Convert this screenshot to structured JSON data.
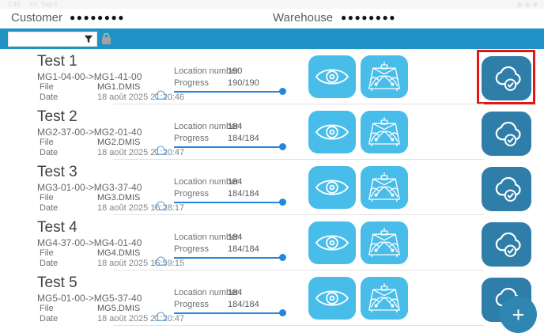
{
  "status_bar": {
    "time": "3:40",
    "date": "Fri, Sep 5"
  },
  "header": {
    "customer_label": "Customer",
    "customer_value_masked": "●●●●●●●●",
    "warehouse_label": "Warehouse",
    "warehouse_value_masked": "●●●●●●●●"
  },
  "toolbar": {
    "search_value": "",
    "search_placeholder": ""
  },
  "labels": {
    "file": "File",
    "date": "Date",
    "location": "Location number",
    "progress": "Progress"
  },
  "rows": [
    {
      "title": "Test 1",
      "range": "MG1-04-00->MG1-41-00",
      "file": "MG1.DMIS",
      "date": "18 août 2025 21:20:46",
      "location": "190",
      "progress": "190/190",
      "progress_percent": 100,
      "upload_highlighted": true
    },
    {
      "title": "Test 2",
      "range": "MG2-37-00->MG2-01-40",
      "file": "MG2.DMIS",
      "date": "18 août 2025 21:20:47",
      "location": "184",
      "progress": "184/184",
      "progress_percent": 100,
      "upload_highlighted": false
    },
    {
      "title": "Test 3",
      "range": "MG3-01-00->MG3-37-40",
      "file": "MG3.DMIS",
      "date": "18 août 2025 16:28:17",
      "location": "184",
      "progress": "184/184",
      "progress_percent": 100,
      "upload_highlighted": false
    },
    {
      "title": "Test 4",
      "range": "MG4-37-00->MG4-01-40",
      "file": "MG4.DMIS",
      "date": "18 août 2025 16:59:15",
      "location": "184",
      "progress": "184/184",
      "progress_percent": 100,
      "upload_highlighted": false
    },
    {
      "title": "Test 5",
      "range": "MG5-01-00->MG5-37-40",
      "file": "MG5.DMIS",
      "date": "18 août 2025 21:20:47",
      "location": "184",
      "progress": "184/184",
      "progress_percent": 100,
      "upload_highlighted": false
    }
  ],
  "fab": {
    "label": "+"
  },
  "colors": {
    "accent-light": "#49bde9",
    "accent-dark": "#2f7ea9",
    "bar-blue": "#2093c6",
    "progress-blue": "#2287e0",
    "highlight-red": "#e51511",
    "fab-blue": "#2e86b1"
  }
}
